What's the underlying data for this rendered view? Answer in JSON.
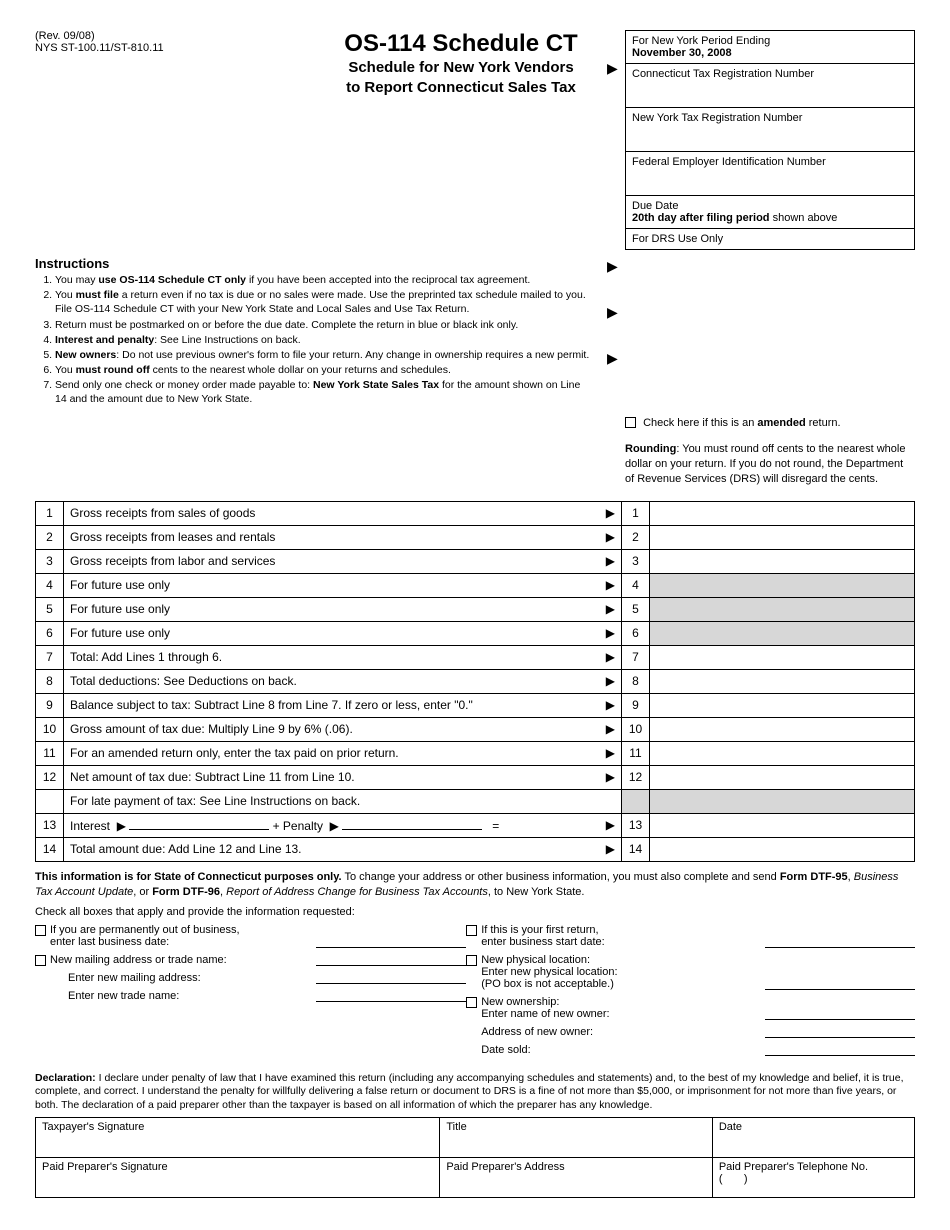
{
  "header": {
    "rev": "(Rev. 09/08)",
    "form_no": "NYS ST-100.11/ST-810.11",
    "title": "OS-114 Schedule CT",
    "subtitle1": "Schedule for New York Vendors",
    "subtitle2": "to Report Connecticut Sales Tax"
  },
  "infobox": {
    "period_label": "For New York Period Ending",
    "period_value": "November 30, 2008",
    "ct_reg": "Connecticut Tax Registration Number",
    "ny_reg": "New York Tax Registration Number",
    "fein": "Federal Employer Identification Number",
    "due_label": "Due Date",
    "due_value": "20th day after filing period",
    "due_suffix": " shown above",
    "drs": "For DRS Use Only"
  },
  "instructions": {
    "heading": "Instructions",
    "items": [
      "You may <b>use OS-114 Schedule CT only</b> if you have been accepted into the reciprocal tax agreement.",
      "You <b>must file</b> a return even if no tax is due or no sales were made. Use the preprinted tax schedule mailed to you. File OS-114 Schedule CT with your New York State and Local Sales and Use Tax Return.",
      "Return must be postmarked on or before the due date. Complete the return in blue or black ink only.",
      "<b>Interest and penalty</b>: See Line Instructions on back.",
      "<b>New owners</b>: Do not use previous owner's form to file your return. Any change in ownership requires a new permit.",
      "You <b>must round off</b> cents to the nearest whole dollar on your returns and schedules.",
      "Send only one check or money order made payable to: <b>New York State Sales Tax</b> for the amount shown on Line 14 and the amount due to New York State."
    ]
  },
  "amended": "Check here if this is an <b>amended</b> return.",
  "rounding": "<b>Rounding</b>: You must round off cents to the nearest whole dollar on your return. If you do not round, the Department of Revenue Services (DRS) will disregard the cents.",
  "lines": [
    {
      "n": "1",
      "d": "Gross receipts from sales of goods",
      "gray": false
    },
    {
      "n": "2",
      "d": "Gross receipts from leases and rentals",
      "gray": false
    },
    {
      "n": "3",
      "d": "Gross receipts from labor and services",
      "gray": false
    },
    {
      "n": "4",
      "d": "For future use only",
      "gray": true
    },
    {
      "n": "5",
      "d": "For future use only",
      "gray": true
    },
    {
      "n": "6",
      "d": "For future use only",
      "gray": true
    },
    {
      "n": "7",
      "d": "Total: Add Lines 1 through 6.",
      "gray": false
    },
    {
      "n": "8",
      "d": "Total deductions: See Deductions on back.",
      "gray": false
    },
    {
      "n": "9",
      "d": "Balance subject to tax: Subtract Line 8 from Line 7. If zero or less, enter \"0.\"",
      "gray": false
    },
    {
      "n": "10",
      "d": "Gross amount of tax due: Multiply Line 9 by 6% (.06).",
      "gray": false
    },
    {
      "n": "11",
      "d": "For an amended return only, enter the tax paid on prior return.",
      "gray": false
    },
    {
      "n": "12",
      "d": "Net amount of tax due: Subtract Line 11 from Line 10.",
      "gray": false
    }
  ],
  "line_late": "For late payment of tax: See Line Instructions on back.",
  "line13_interest": "Interest",
  "line13_penalty": "Penalty",
  "line14": "Total amount due: Add Line 12 and Line 13.",
  "info_purpose": "<b>This information is for State of Connecticut purposes only.</b> To change your address or other business information, you must also complete and send <b>Form DTF-95</b>, <i>Business Tax Account Update</i>, or <b>Form DTF-96</b>, <i>Report of Address Change for Business Tax Accounts</i>, to New York State.",
  "check_intro": "Check all boxes that apply and provide the information requested:",
  "checks": {
    "left": [
      {
        "box": true,
        "t": "If you are permanently out of business,<br>enter last business date:"
      },
      {
        "box": true,
        "t": "New mailing address or trade name:"
      },
      {
        "box": false,
        "t": "Enter new mailing address:",
        "indent": true
      },
      {
        "box": false,
        "t": "Enter new trade name:",
        "indent": true
      }
    ],
    "right": [
      {
        "box": true,
        "t": "If this is your first return,<br>enter business start date:"
      },
      {
        "box": true,
        "t": "New physical location:<br>Enter new physical location:<br>(PO box is not acceptable.)"
      },
      {
        "box": true,
        "t": "New ownership:<br>Enter name of new owner:"
      },
      {
        "box": false,
        "t": "Address of new owner:"
      },
      {
        "box": false,
        "t": "Date sold:"
      }
    ]
  },
  "declaration": "<b>Declaration:</b> I declare under penalty of law that I have examined this return (including any accompanying schedules and statements) and, to the best of my knowledge and belief, it is true, complete, and correct. I understand the penalty for willfully delivering a false return or document to DRS is a fine of not more than $5,000, or imprisonment for not more than five years, or both. The declaration of a paid preparer other than the taxpayer is based on all information of which the preparer has any knowledge.",
  "sig": {
    "r1": [
      "Taxpayer's Signature",
      "Title",
      "Date"
    ],
    "r2": [
      "Paid Preparer's Signature",
      "Paid Preparer's Address",
      "Paid Preparer's Telephone No.<br>(&nbsp;&nbsp;&nbsp;&nbsp;&nbsp;&nbsp;&nbsp;)"
    ]
  }
}
